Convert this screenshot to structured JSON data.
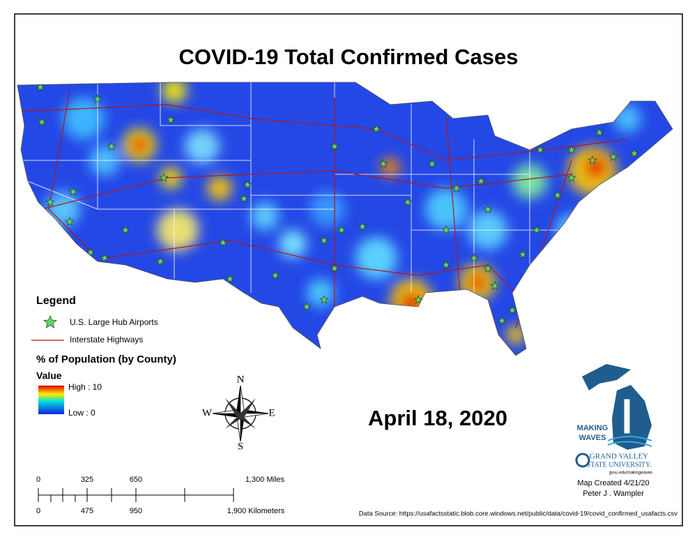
{
  "title": "COVID-19 Total Confirmed Cases",
  "legend": {
    "heading": "Legend",
    "airports": "U.S. Large Hub Airports",
    "highways": "Interstate Highways",
    "population_heading": "% of Population (by County)",
    "value_heading": "Value",
    "high": "High : 10",
    "low": "Low : 0"
  },
  "compass": {
    "north": "N",
    "east": "E",
    "south": "S",
    "west": "W"
  },
  "date": "April 18, 2020",
  "scale_bar": {
    "miles": [
      "0",
      "325",
      "650",
      "1,300 Miles"
    ],
    "kilometers": [
      "0",
      "475",
      "950",
      "1,900 Kilometers"
    ]
  },
  "logo": {
    "line1": "MAKING",
    "line2": "WAVES",
    "university1": "GRAND VALLEY",
    "university2": "STATE UNIVERSITY.",
    "url": "gvsu.edu/makingwaves"
  },
  "credits": {
    "created": "Map Created 4/21/20",
    "author": "Peter J . Wampler"
  },
  "source": "Data Source: https://usafactsstatic.blob.core.windows.net/public/data/covid-19/covid_confirmed_usafacts.csv"
}
